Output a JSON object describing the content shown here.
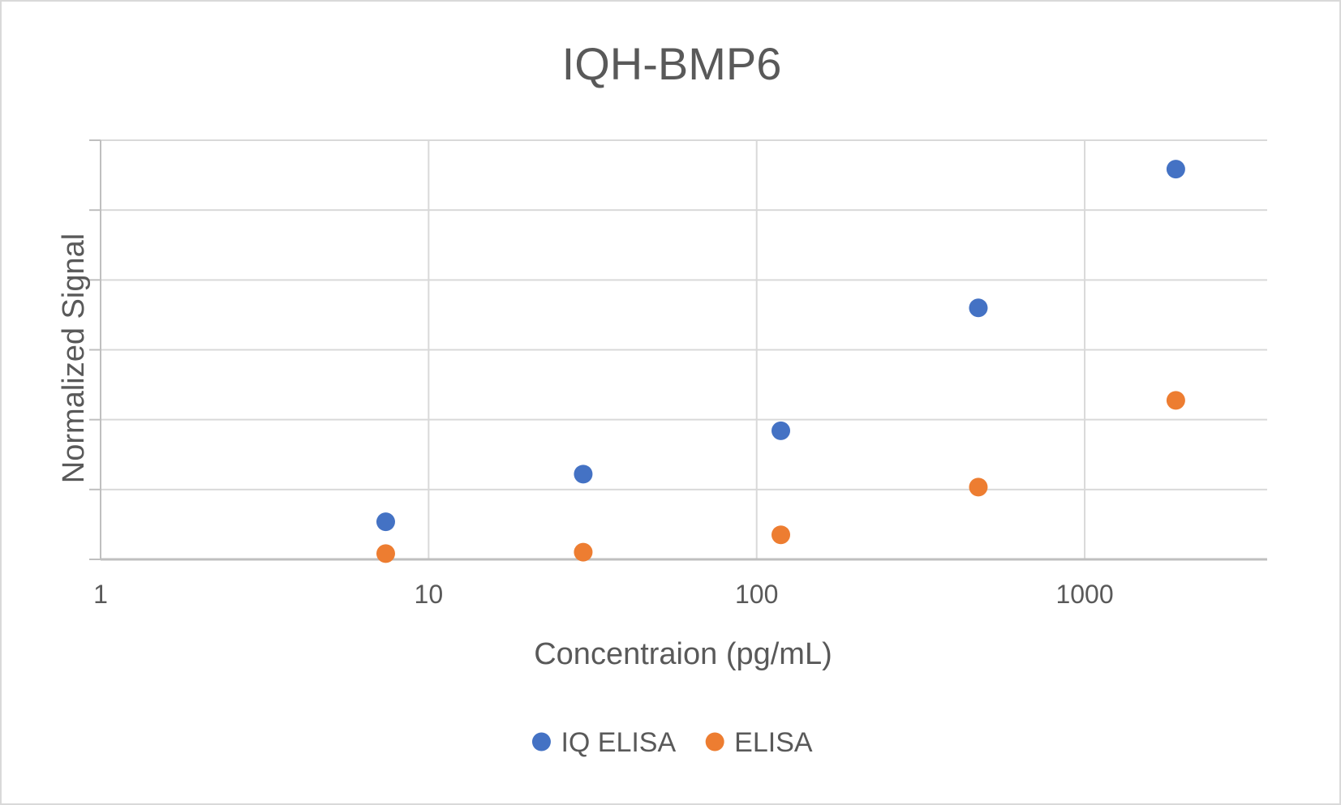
{
  "chart_data": {
    "type": "scatter",
    "title": "IQH-BMP6",
    "xlabel": "Concentraion (pg/mL)",
    "ylabel": "Normalized Signal",
    "x_scale": "log",
    "xlim": [
      1,
      3600
    ],
    "x_ticks": [
      1,
      10,
      100,
      1000
    ],
    "x_tick_labels": [
      "1",
      "10",
      "100",
      "1000"
    ],
    "ylim": [
      0,
      2.9
    ],
    "y_tick_labels_shown": false,
    "grid": true,
    "legend_position": "bottom",
    "series": [
      {
        "name": "IQ ELISA",
        "color": "#4472c4",
        "x": [
          7.4,
          29.6,
          118.5,
          474,
          1896
        ],
        "y": [
          0.26,
          0.59,
          0.89,
          1.74,
          2.7
        ]
      },
      {
        "name": "ELISA",
        "color": "#ed7d31",
        "x": [
          7.4,
          29.6,
          118.5,
          474,
          1896
        ],
        "y": [
          0.04,
          0.05,
          0.17,
          0.5,
          1.1
        ]
      }
    ]
  }
}
